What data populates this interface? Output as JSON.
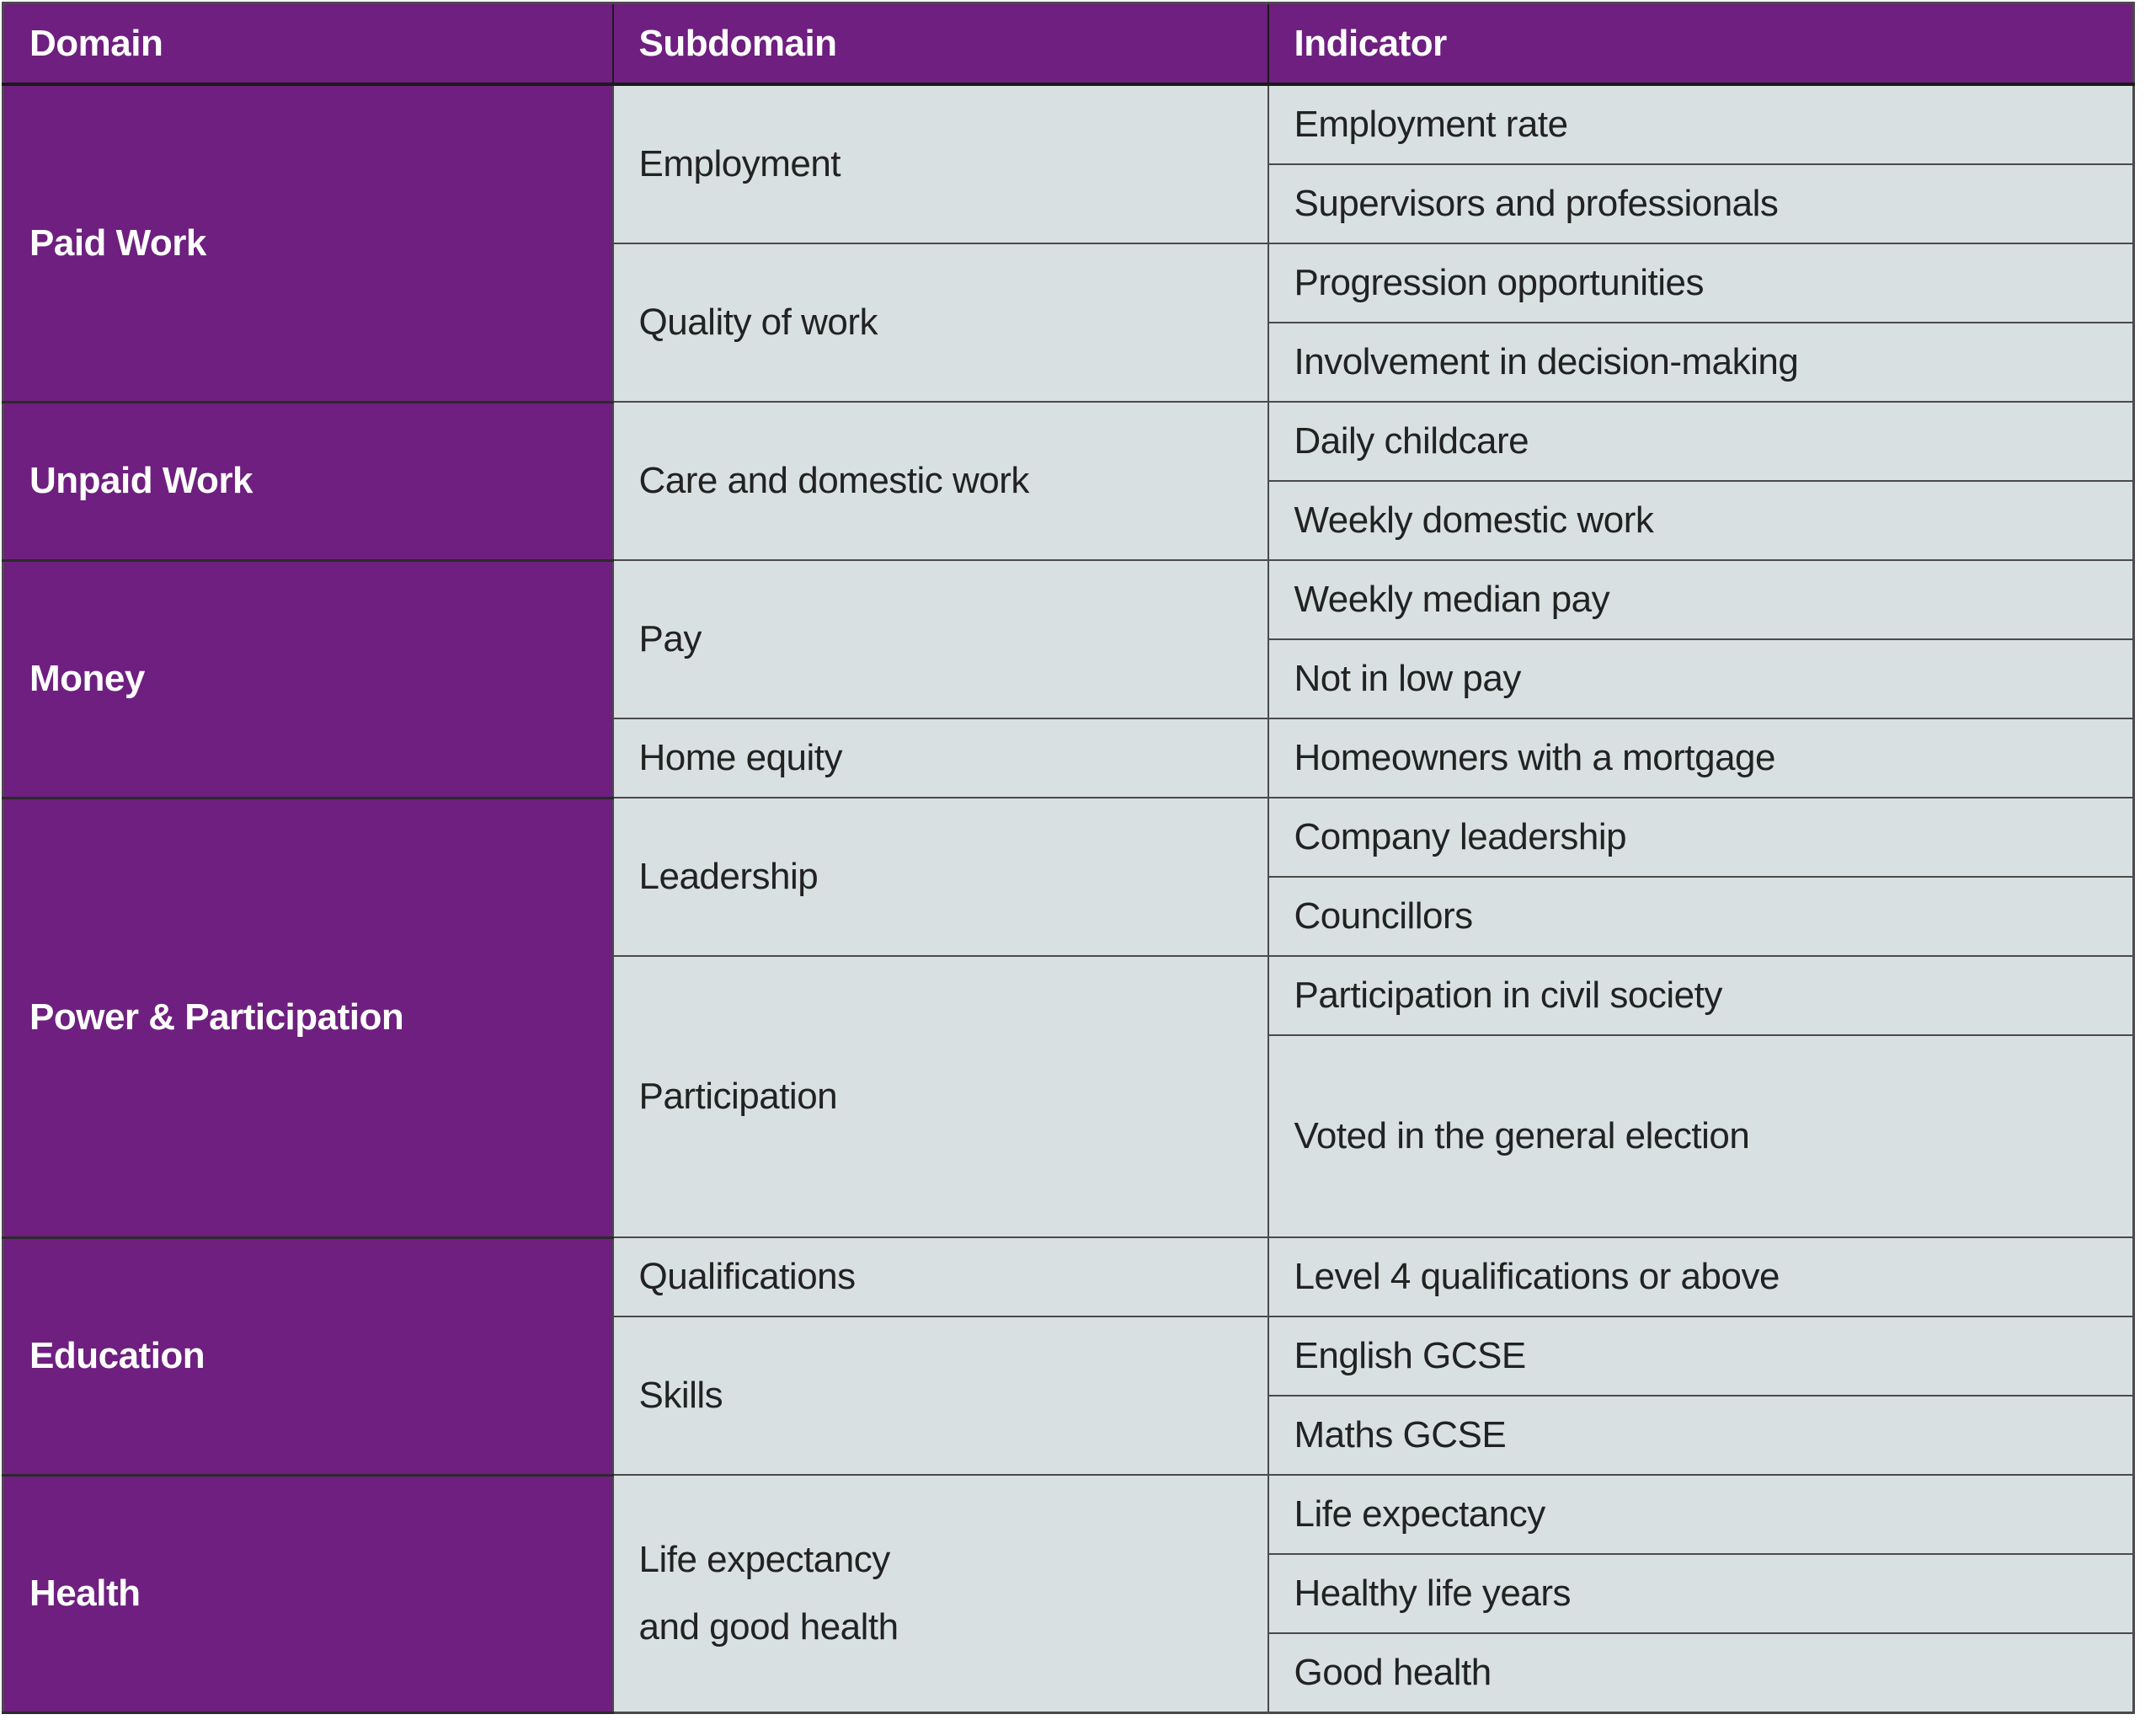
{
  "table": {
    "headers": {
      "domain": "Domain",
      "subdomain": "Subdomain",
      "indicator": "Indicator"
    },
    "colors": {
      "header_bg": "#6e1f7f",
      "domain_bg": "#6e1f7f",
      "cell_bg": "#d9e0e2",
      "text": "#222222"
    },
    "domains": [
      {
        "name": "Paid Work",
        "subdomains": [
          {
            "name": "Employment",
            "indicators": [
              "Employment rate",
              "Supervisors and professionals"
            ]
          },
          {
            "name": "Quality of work",
            "indicators": [
              "Progression opportunities",
              "Involvement in decision-making"
            ]
          }
        ]
      },
      {
        "name": "Unpaid Work",
        "subdomains": [
          {
            "name": "Care and domestic work",
            "indicators": [
              "Daily childcare",
              "Weekly domestic work"
            ]
          }
        ]
      },
      {
        "name": "Money",
        "subdomains": [
          {
            "name": "Pay",
            "indicators": [
              "Weekly median pay",
              "Not in low pay"
            ]
          },
          {
            "name": "Home equity",
            "indicators": [
              "Homeowners with a mortgage"
            ]
          }
        ]
      },
      {
        "name": "Power & Participation",
        "subdomains": [
          {
            "name": "Leadership",
            "indicators": [
              "Company leadership",
              "Councillors"
            ]
          },
          {
            "name": "Participation",
            "indicators": [
              "Participation in civil society",
              "Voted in the general election"
            ]
          }
        ]
      },
      {
        "name": "Education",
        "subdomains": [
          {
            "name": "Qualifications",
            "indicators": [
              "Level 4 qualifications or above"
            ]
          },
          {
            "name": "Skills",
            "indicators": [
              "English GCSE",
              "Maths GCSE"
            ]
          }
        ]
      },
      {
        "name": "Health",
        "subdomains": [
          {
            "name": "Life expectancy and good health",
            "indicators": [
              "Life expectancy",
              "Healthy life years",
              "Good health"
            ]
          }
        ]
      }
    ]
  }
}
